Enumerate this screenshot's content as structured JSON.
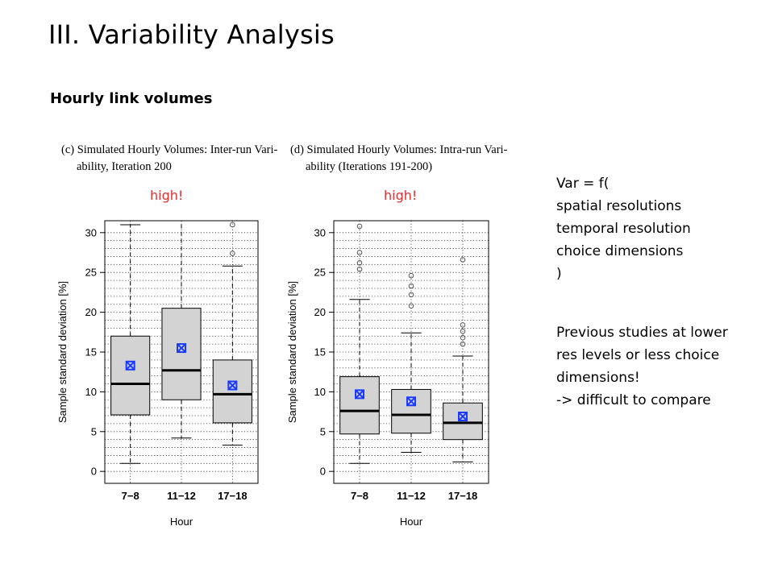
{
  "slide": {
    "title": "III. Variability Analysis",
    "subtitle": "Hourly link volumes"
  },
  "captions": {
    "left": {
      "line1": "(c) Simulated Hourly Volumes: Inter-run Vari-",
      "line2": "ability, Iteration 200"
    },
    "right": {
      "line1": "(d) Simulated Hourly Volumes: Intra-run Vari-",
      "line2": "ability (Iterations 191-200)"
    }
  },
  "annotations": {
    "high_left": "high!",
    "high_right": "high!",
    "high_color": "#e03030"
  },
  "side_notes": {
    "var_lines": [
      "Var = f(",
      "spatial resolutions",
      "temporal resolution",
      "choice dimensions",
      ")"
    ],
    "previous_lines": [
      "Previous studies at lower",
      "res levels or less choice",
      "dimensions!",
      "-> difficult to compare"
    ]
  },
  "chart_data": [
    {
      "type": "boxplot",
      "panel": "left",
      "xlabel": "Hour",
      "ylabel": "Sample standard deviation [%]",
      "ylim": [
        -1.5,
        31.5
      ],
      "yticks": [
        0,
        5,
        10,
        15,
        20,
        25,
        30
      ],
      "categories": [
        "7−8",
        "11−12",
        "17−18"
      ],
      "grid": "dotted",
      "box_color": "#d3d3d3",
      "mean_marker_color": "#1a3bff",
      "boxes": [
        {
          "whisker_low": 1.0,
          "q1": 7.1,
          "median": 11.0,
          "q3": 17.0,
          "whisker_high": 31.0,
          "mean": 13.3,
          "outliers": []
        },
        {
          "whisker_low": 4.2,
          "q1": 9.0,
          "median": 12.7,
          "q3": 20.5,
          "whisker_high": 31.5,
          "mean": 15.5,
          "outliers": []
        },
        {
          "whisker_low": 3.3,
          "q1": 6.1,
          "median": 9.7,
          "q3": 14.0,
          "whisker_high": 25.8,
          "mean": 10.8,
          "outliers": [
            27.4,
            31.0
          ]
        }
      ]
    },
    {
      "type": "boxplot",
      "panel": "right",
      "xlabel": "Hour",
      "ylabel": "Sample standard deviation [%]",
      "ylim": [
        -1.5,
        31.5
      ],
      "yticks": [
        0,
        5,
        10,
        15,
        20,
        25,
        30
      ],
      "categories": [
        "7−8",
        "11−12",
        "17−18"
      ],
      "grid": "dotted",
      "box_color": "#d3d3d3",
      "mean_marker_color": "#1a3bff",
      "boxes": [
        {
          "whisker_low": 1.0,
          "q1": 4.7,
          "median": 7.6,
          "q3": 11.9,
          "whisker_high": 21.6,
          "mean": 9.7,
          "outliers": [
            25.4,
            26.2,
            27.5,
            30.8
          ]
        },
        {
          "whisker_low": 2.4,
          "q1": 4.8,
          "median": 7.1,
          "q3": 10.3,
          "whisker_high": 17.4,
          "mean": 8.8,
          "outliers": [
            20.8,
            22.2,
            23.3,
            24.6
          ]
        },
        {
          "whisker_low": 1.2,
          "q1": 4.0,
          "median": 6.1,
          "q3": 8.6,
          "whisker_high": 14.5,
          "mean": 6.9,
          "outliers": [
            16.0,
            16.8,
            17.6,
            18.4,
            26.6
          ]
        }
      ]
    }
  ]
}
